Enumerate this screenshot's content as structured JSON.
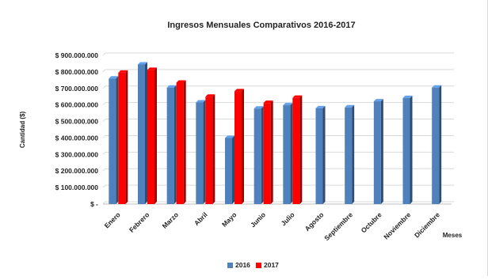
{
  "chart_data": {
    "type": "bar",
    "title": "Ingresos Mensuales Comparativos 2016-2017",
    "xlabel": "Meses",
    "ylabel": "Cantidad ($)",
    "categories": [
      "Enero",
      "Febrero",
      "Marzo",
      "Abril",
      "Mayo",
      "Junio",
      "Julio",
      "Agosto",
      "Septiembre",
      "Octubre",
      "Noviembre",
      "Diciembre"
    ],
    "series": [
      {
        "name": "2016",
        "color": "#4f81bd",
        "values": [
          760000000,
          845000000,
          705000000,
          615000000,
          400000000,
          578000000,
          598000000,
          580000000,
          585000000,
          622000000,
          642000000,
          705000000
        ]
      },
      {
        "name": "2017",
        "color": "#ff0000",
        "values": [
          795000000,
          812000000,
          735000000,
          650000000,
          683000000,
          612000000,
          643000000,
          null,
          null,
          null,
          null,
          null
        ]
      }
    ],
    "ylim": [
      0,
      900000000
    ],
    "ytick_values": [
      0,
      100000000,
      200000000,
      300000000,
      400000000,
      500000000,
      600000000,
      700000000,
      800000000,
      900000000
    ],
    "ytick_labels": [
      "$ -",
      "$ 100.000.000",
      "$ 200.000.000",
      "$ 300.000.000",
      "$ 400.000.000",
      "$ 500.000.000",
      "$ 600.000.000",
      "$ 700.000.000",
      "$ 800.000.000",
      "$ 900.000.000"
    ],
    "grid": true,
    "legend_position": "bottom"
  }
}
